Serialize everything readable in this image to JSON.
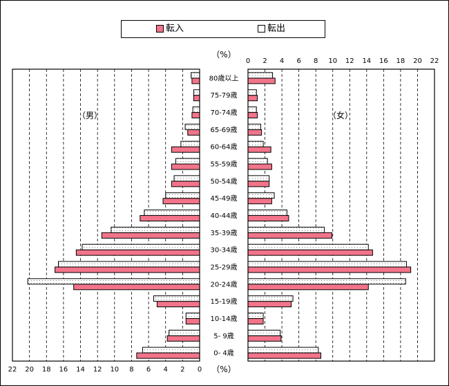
{
  "chart_data": {
    "type": "bar",
    "orientation": "population-pyramid",
    "unit_label": "（%）",
    "left_panel_label": "（男）",
    "right_panel_label": "（女）",
    "categories": [
      "80歳以上",
      "75-79歳",
      "70-74歳",
      "65-69歳",
      "60-64歳",
      "55-59歳",
      "50-54歳",
      "45-49歳",
      "40-44歳",
      "35-39歳",
      "30-34歳",
      "25-29歳",
      "20-24歳",
      "15-19歳",
      "10-14歳",
      "5- 9歳",
      "0- 4歳"
    ],
    "xlim": [
      0,
      22
    ],
    "ticks": [
      0,
      2,
      4,
      6,
      8,
      10,
      12,
      14,
      16,
      18,
      20,
      22
    ],
    "grid": true,
    "legend_position": "top",
    "series": [
      {
        "name": "転入",
        "color": "#f2748a",
        "male": [
          0.9,
          0.7,
          0.9,
          1.4,
          3.3,
          3.3,
          3.3,
          4.3,
          7.0,
          11.5,
          14.5,
          17.0,
          14.8,
          5.0,
          1.6,
          3.8,
          7.4
        ],
        "female": [
          3.2,
          1.1,
          1.1,
          1.6,
          2.7,
          2.8,
          2.5,
          2.8,
          4.8,
          9.9,
          14.7,
          19.2,
          14.2,
          5.1,
          1.8,
          3.9,
          8.6
        ]
      },
      {
        "name": "転出",
        "color": "#ffffff",
        "male": [
          1.0,
          0.7,
          0.8,
          1.7,
          2.2,
          2.8,
          3.0,
          4.0,
          6.5,
          10.4,
          13.8,
          16.6,
          20.2,
          5.4,
          1.6,
          3.6,
          6.7
        ],
        "female": [
          2.9,
          1.0,
          1.0,
          1.5,
          1.8,
          2.3,
          2.5,
          3.1,
          4.6,
          9.0,
          14.2,
          18.7,
          18.6,
          5.3,
          1.8,
          3.8,
          8.3
        ]
      }
    ]
  }
}
